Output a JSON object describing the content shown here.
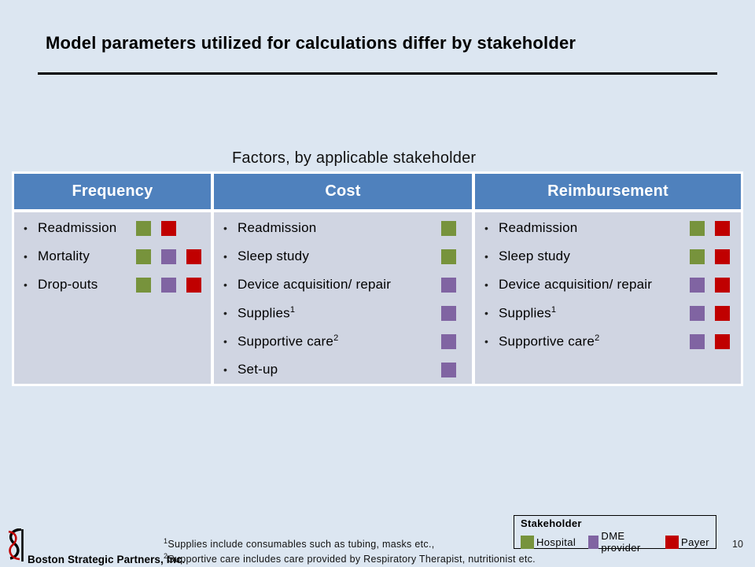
{
  "slide": {
    "title": "Model parameters utilized for calculations differ by stakeholder",
    "page_number": "10"
  },
  "table": {
    "caption": "Factors, by applicable stakeholder",
    "columns": [
      {
        "header": "Frequency",
        "rows": [
          {
            "label": "Readmission",
            "stakeholders": [
              "hospital",
              "payer"
            ]
          },
          {
            "label": "Mortality",
            "stakeholders": [
              "hospital",
              "dme",
              "payer"
            ]
          },
          {
            "label": "Drop-outs",
            "stakeholders": [
              "hospital",
              "dme",
              "payer"
            ]
          }
        ]
      },
      {
        "header": "Cost",
        "rows": [
          {
            "label": "Readmission",
            "stakeholders": [
              "hospital"
            ]
          },
          {
            "label": "Sleep study",
            "stakeholders": [
              "hospital"
            ]
          },
          {
            "label": "Device acquisition/ repair",
            "stakeholders": [
              "dme"
            ]
          },
          {
            "label": "Supplies",
            "sup": "1",
            "stakeholders": [
              "dme"
            ]
          },
          {
            "label": "Supportive care",
            "sup": "2",
            "stakeholders": [
              "dme"
            ]
          },
          {
            "label": "Set-up",
            "stakeholders": [
              "dme"
            ]
          }
        ]
      },
      {
        "header": "Reimbursement",
        "rows": [
          {
            "label": "Readmission",
            "stakeholders": [
              "hospital",
              "payer"
            ]
          },
          {
            "label": "Sleep study",
            "stakeholders": [
              "hospital",
              "payer"
            ]
          },
          {
            "label": "Device acquisition/ repair",
            "stakeholders": [
              "dme",
              "payer"
            ]
          },
          {
            "label": "Supplies",
            "sup": "1",
            "stakeholders": [
              "dme",
              "payer"
            ]
          },
          {
            "label": "Supportive care",
            "sup": "2",
            "stakeholders": [
              "dme",
              "payer"
            ]
          }
        ]
      }
    ]
  },
  "stakeholders": {
    "hospital": {
      "label": "Hospital",
      "color": "#77933C"
    },
    "dme": {
      "label": "DME provider",
      "color": "#8064A2"
    },
    "payer": {
      "label": "Payer",
      "color": "#C00000"
    }
  },
  "legend": {
    "title": "Stakeholder",
    "order": [
      "hospital",
      "dme",
      "payer"
    ]
  },
  "footnotes": [
    {
      "marker": "1",
      "text": "Supplies include consumables such as tubing, masks etc.,"
    },
    {
      "marker": "2",
      "text": "Supportive care includes care provided by Respiratory Therapist, nutritionist etc."
    }
  ],
  "footer": {
    "company": "Boston Strategic Partners, Inc."
  },
  "colors": {
    "page_bg": "#DCE6F1",
    "table_header_bg": "#4F81BD",
    "table_header_text": "#FFFFFF",
    "table_body_bg": "#D0D5E2",
    "table_border": "#FFFFFF",
    "title_text": "#000000",
    "logo_accent": "#C00000"
  }
}
